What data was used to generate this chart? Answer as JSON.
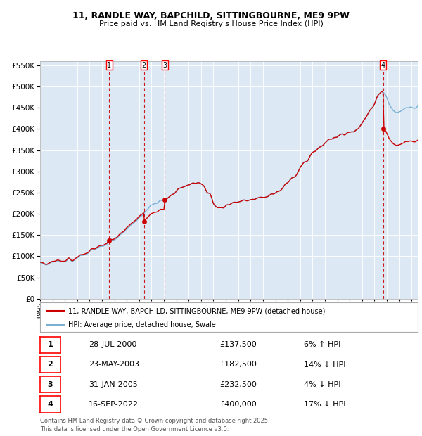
{
  "title": "11, RANDLE WAY, BAPCHILD, SITTINGBOURNE, ME9 9PW",
  "subtitle": "Price paid vs. HM Land Registry's House Price Index (HPI)",
  "legend_line1": "11, RANDLE WAY, BAPCHILD, SITTINGBOURNE, ME9 9PW (detached house)",
  "legend_line2": "HPI: Average price, detached house, Swale",
  "footer1": "Contains HM Land Registry data © Crown copyright and database right 2025.",
  "footer2": "This data is licensed under the Open Government Licence v3.0.",
  "sales": [
    {
      "num": 1,
      "date": "28-JUL-2000",
      "price": 137500,
      "pct": "6%",
      "dir": "↑"
    },
    {
      "num": 2,
      "date": "23-MAY-2003",
      "price": 182500,
      "pct": "14%",
      "dir": "↓"
    },
    {
      "num": 3,
      "date": "31-JAN-2005",
      "price": 232500,
      "pct": "4%",
      "dir": "↓"
    },
    {
      "num": 4,
      "date": "16-SEP-2022",
      "price": 400000,
      "pct": "17%",
      "dir": "↓"
    }
  ],
  "sale_years": [
    2000.57,
    2003.39,
    2005.08,
    2022.71
  ],
  "sale_prices": [
    137500,
    182500,
    232500,
    400000
  ],
  "background_color": "#dce9f5",
  "plot_bg": "#dce9f5",
  "hpi_color": "#7bafd4",
  "price_color": "#cc0000",
  "vline_color": "#cc0000",
  "ylim": [
    0,
    560000
  ],
  "yticks": [
    0,
    50000,
    100000,
    150000,
    200000,
    250000,
    300000,
    350000,
    400000,
    450000,
    500000,
    550000
  ],
  "start_year": 1995.0,
  "end_year": 2025.5
}
